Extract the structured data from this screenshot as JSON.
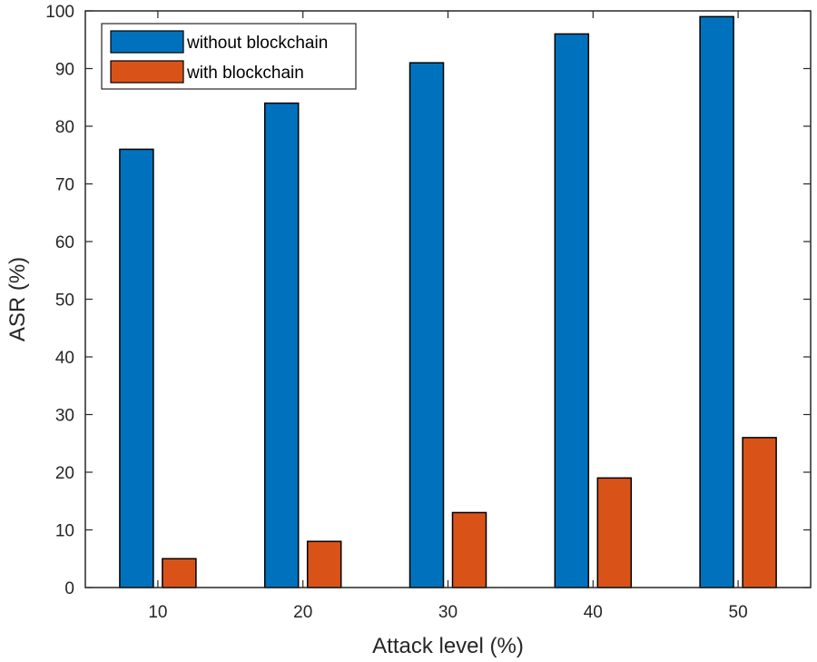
{
  "chart_data": {
    "type": "bar",
    "xlabel": "Attack level (%)",
    "ylabel": "ASR (%)",
    "categories": [
      "10",
      "20",
      "30",
      "40",
      "50"
    ],
    "series": [
      {
        "name": "without blockchain",
        "values": [
          76,
          84,
          91,
          96,
          99
        ],
        "color": "#0072BD"
      },
      {
        "name": "with blockchain",
        "values": [
          5,
          8,
          13,
          19,
          26
        ],
        "color": "#D95319"
      }
    ],
    "ylim": [
      0,
      100
    ],
    "yticks": [
      0,
      10,
      20,
      30,
      40,
      50,
      60,
      70,
      80,
      90,
      100
    ],
    "grid": false,
    "legend_position": "top-left"
  }
}
